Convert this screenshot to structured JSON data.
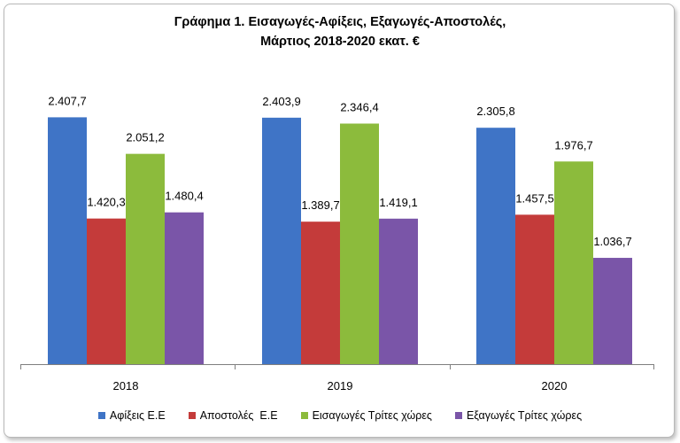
{
  "chart_data": {
    "type": "bar",
    "title_lines": [
      "Γράφημα 1. Εισαγωγές-Αφίξεις, Εξαγωγές-Αποστολές,",
      "Μάρτιος 2018-2020 εκατ. €"
    ],
    "categories": [
      "2018",
      "2019",
      "2020"
    ],
    "series": [
      {
        "name": "Αφίξεις Ε.Ε",
        "color": "#3F74C6",
        "values": [
          2407.7,
          2403.9,
          2305.8
        ],
        "labels": [
          "2.407,7",
          "2.403,9",
          "2.305,8"
        ]
      },
      {
        "name": "Αποστολές  Ε.Ε",
        "color": "#C43B3A",
        "values": [
          1420.3,
          1389.7,
          1457.5
        ],
        "labels": [
          "1.420,3",
          "1.389,7",
          "1.457,5"
        ]
      },
      {
        "name": "Εισαγωγές Τρίτες χώρες",
        "color": "#8CBB3C",
        "values": [
          2051.2,
          2346.4,
          1976.7
        ],
        "labels": [
          "2.051,2",
          "2.346,4",
          "1.976,7"
        ]
      },
      {
        "name": "Εξαγωγές Τρίτες χώρες",
        "color": "#7A55A8",
        "values": [
          1480.4,
          1419.1,
          1036.7
        ],
        "labels": [
          "1.480,4",
          "1.419,1",
          "1.036,7"
        ]
      }
    ],
    "ylim": [
      0,
      2800
    ],
    "grid": false,
    "legend_position": "bottom"
  }
}
